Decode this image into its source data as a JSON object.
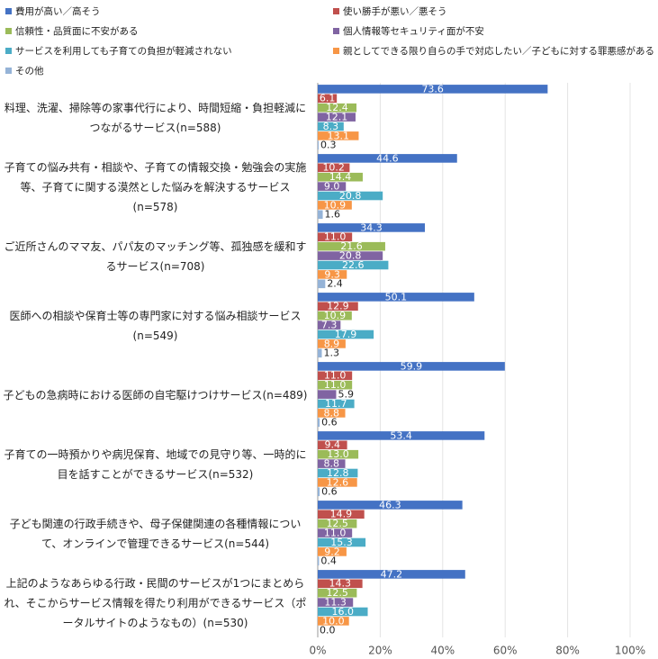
{
  "chart_data": {
    "type": "hbar",
    "categories": [
      "料理、洗濯、掃除等の家事代行により、時間短縮・負担軽減につながるサービス(n=588)",
      "子育ての悩み共有・相談や、子育ての情報交換・勉強会の実施等、子育てに関する漠然とした悩みを解決するサービス(n=578)",
      "ご近所さんのママ友、パパ友のマッチング等、孤独感を緩和するサービス(n=708)",
      "医師への相談や保育士等の専門家に対する悩み相談サービス(n=549)",
      "子どもの急病時における医師の自宅駆けつけサービス(n=489)",
      "子育ての一時預かりや病児保育、地域での見守り等、一時的に目を話すことができるサービス(n=532)",
      "子ども関連の行政手続きや、母子保健関連の各種情報について、オンラインで管理できるサービス(n=544)",
      "上記のようなあらゆる行政・民間のサービスが1つにまとめられ、そこからサービス情報を得たり利用ができるサービス（ポータルサイトのようなもの）(n=530)"
    ],
    "series": [
      {
        "name": "費用が高い／高そう",
        "color": "#4472c4",
        "values": [
          73.6,
          44.6,
          34.3,
          50.1,
          59.9,
          53.4,
          46.3,
          47.2
        ],
        "value_labels": [
          "73.6",
          "44.6",
          "34.3",
          "50.1",
          "59.9",
          "53.4",
          "46.3",
          "47.2"
        ]
      },
      {
        "name": "使い勝手が悪い／悪そう",
        "color": "#c0504d",
        "values": [
          6.1,
          10.2,
          11,
          12.9,
          11,
          9.4,
          14.9,
          14.3
        ],
        "value_labels": [
          "6.1",
          "10.2",
          "11.0",
          "12.9",
          "11.0",
          "9.4",
          "14.9",
          "14.3"
        ]
      },
      {
        "name": "信頼性・品質面に不安がある",
        "color": "#9bbb59",
        "values": [
          12.4,
          14.4,
          21.6,
          10.9,
          11,
          13,
          12.5,
          12.5
        ],
        "value_labels": [
          "12.4",
          "14.4",
          "21.6",
          "10.9",
          "11.0",
          "13.0",
          "12.5",
          "12.5"
        ]
      },
      {
        "name": "個人情報等セキュリティ面が不安",
        "color": "#8064a2",
        "values": [
          12.1,
          9,
          20.8,
          7.3,
          5.9,
          8.8,
          11,
          11.3
        ],
        "value_labels": [
          "12.1",
          "9.0",
          "20.8",
          "7.3",
          "5.9",
          "8.8",
          "11.0",
          "11.3"
        ]
      },
      {
        "name": "サービスを利用しても子育ての負担が軽減されない",
        "color": "#4bacc6",
        "values": [
          8.3,
          20.8,
          22.6,
          17.9,
          11.7,
          12.8,
          15.3,
          16
        ],
        "value_labels": [
          "8.3",
          "20.8",
          "22.6",
          "17.9",
          "11.7",
          "12.8",
          "15.3",
          "16.0"
        ]
      },
      {
        "name": "親としてできる限り自らの手で対応したい／子どもに対する罪悪感がある",
        "color": "#f79646",
        "values": [
          13.1,
          10.9,
          9.3,
          8.9,
          8.8,
          12.6,
          9.2,
          10
        ],
        "value_labels": [
          "13.1",
          "10.9",
          "9.3",
          "8.9",
          "8.8",
          "12.6",
          "9.2",
          "10.0"
        ]
      },
      {
        "name": "その他",
        "color": "#95b3d7",
        "values": [
          0.3,
          1.6,
          2.4,
          1.3,
          0.6,
          0.6,
          0.4,
          0
        ],
        "value_labels": [
          "0.3",
          "1.6",
          "2.4",
          "1.3",
          "0.6",
          "0.6",
          "0.4",
          "0.0"
        ]
      }
    ],
    "xlim": [
      0,
      100
    ],
    "xticks": [
      {
        "value": 0,
        "label": "0%"
      },
      {
        "value": 20,
        "label": "20%"
      },
      {
        "value": 40,
        "label": "40%"
      },
      {
        "value": 60,
        "label": "60%"
      },
      {
        "value": 80,
        "label": "80%"
      },
      {
        "value": 100,
        "label": "100%"
      }
    ],
    "grid": true
  }
}
